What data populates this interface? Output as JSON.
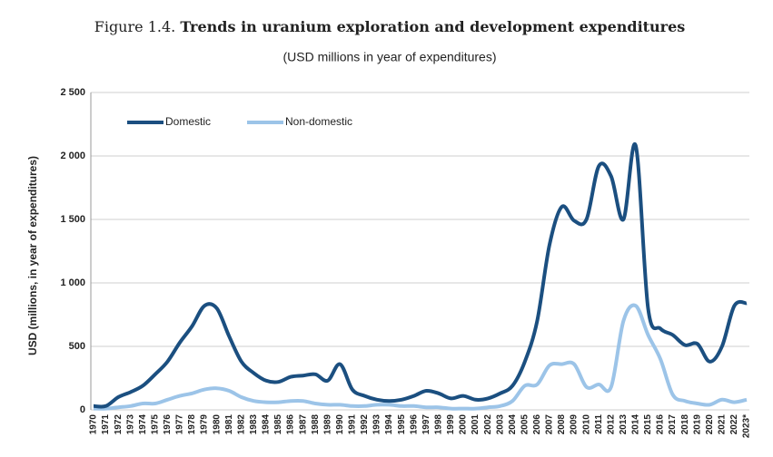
{
  "chart_data": {
    "type": "line",
    "figure_label": "Figure 1.4.",
    "title": "Trends in uranium exploration and development expenditures",
    "subtitle": "(USD millions in year of expenditures)",
    "y_label": "USD (millions, in year of expenditures)",
    "categories": [
      "1970",
      "1971",
      "1972",
      "1973",
      "1974",
      "1975",
      "1976",
      "1977",
      "1978",
      "1979",
      "1980",
      "1981",
      "1982",
      "1983",
      "1984",
      "1985",
      "1986",
      "1987",
      "1988",
      "1989",
      "1990",
      "1991",
      "1992",
      "1993",
      "1994",
      "1995",
      "1996",
      "1997",
      "1998",
      "1999",
      "2000",
      "2001",
      "2002",
      "2003",
      "2004",
      "2005",
      "2006",
      "2007",
      "2008",
      "2009",
      "2010",
      "2011",
      "2012",
      "2013",
      "2014",
      "2015",
      "2016",
      "2017",
      "2018",
      "2019",
      "2020",
      "2021",
      "2022",
      "2023*"
    ],
    "series": [
      {
        "name": "Domestic",
        "color": "#1b4f80",
        "values": [
          30,
          30,
          100,
          140,
          190,
          280,
          380,
          530,
          660,
          820,
          800,
          580,
          380,
          290,
          230,
          220,
          260,
          270,
          280,
          230,
          360,
          160,
          110,
          80,
          70,
          80,
          110,
          150,
          130,
          90,
          110,
          80,
          90,
          130,
          190,
          380,
          700,
          1300,
          1600,
          1490,
          1500,
          1920,
          1840,
          1500,
          2080,
          800,
          640,
          590,
          510,
          520,
          380,
          500,
          820,
          840
        ]
      },
      {
        "name": "Non-domestic",
        "color": "#9cc4e8",
        "values": [
          10,
          10,
          20,
          30,
          50,
          50,
          80,
          110,
          130,
          160,
          170,
          150,
          100,
          70,
          60,
          60,
          70,
          70,
          50,
          40,
          40,
          30,
          30,
          40,
          40,
          30,
          30,
          20,
          20,
          10,
          10,
          10,
          20,
          30,
          70,
          190,
          200,
          350,
          360,
          360,
          180,
          200,
          180,
          700,
          820,
          590,
          400,
          120,
          70,
          50,
          40,
          80,
          60,
          80
        ]
      }
    ],
    "ylim": [
      0,
      2500
    ],
    "yticks": [
      0,
      500,
      {
        "value": 1000,
        "label": "1 000"
      },
      {
        "value": 1500,
        "label": "1 500"
      },
      {
        "value": 2000,
        "label": "2 000"
      },
      {
        "value": 2500,
        "label": "2 500"
      }
    ],
    "grid": true,
    "legend": "top-left"
  }
}
